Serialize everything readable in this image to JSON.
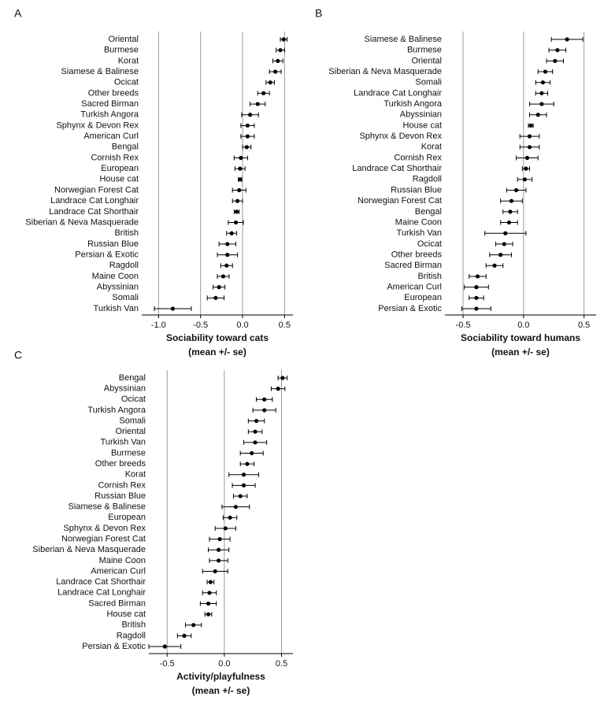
{
  "chart_data": [
    {
      "type": "dot",
      "panel_label": "A",
      "xlabel": "Sociability toward cats",
      "xlabel_sub": "(mean +/- se)",
      "categories": [
        "Oriental",
        "Burmese",
        "Korat",
        "Siamese & Balinese",
        "Ocicat",
        "Other breeds",
        "Sacred Birman",
        "Turkish Angora",
        "Sphynx & Devon Rex",
        "American Curl",
        "Bengal",
        "Cornish Rex",
        "European",
        "House cat",
        "Norwegian Forest Cat",
        "Landrace Cat Longhair",
        "Landrace Cat Shorthair",
        "Siberian & Neva Masquerade",
        "British",
        "Russian Blue",
        "Persian & Exotic",
        "Ragdoll",
        "Maine Coon",
        "Abyssinian",
        "Somali",
        "Turkish Van"
      ],
      "values": [
        0.49,
        0.45,
        0.42,
        0.39,
        0.33,
        0.25,
        0.18,
        0.09,
        0.06,
        0.06,
        0.05,
        -0.02,
        -0.03,
        -0.03,
        -0.04,
        -0.06,
        -0.07,
        -0.08,
        -0.13,
        -0.18,
        -0.18,
        -0.19,
        -0.23,
        -0.28,
        -0.32,
        -0.83
      ],
      "errors": [
        0.04,
        0.05,
        0.06,
        0.07,
        0.05,
        0.07,
        0.09,
        0.1,
        0.08,
        0.08,
        0.05,
        0.08,
        0.06,
        0.02,
        0.08,
        0.06,
        0.03,
        0.09,
        0.06,
        0.1,
        0.12,
        0.07,
        0.07,
        0.07,
        0.1,
        0.22
      ],
      "color": "#000000",
      "xlim": [
        -1.2,
        0.6
      ],
      "xticks": [
        {
          "value": -1,
          "label": "-1.0"
        },
        -0.5,
        {
          "value": 0,
          "label": "0.0"
        },
        0.5
      ],
      "grid": true
    },
    {
      "type": "dot",
      "panel_label": "B",
      "xlabel": "Sociability toward humans",
      "xlabel_sub": "(mean +/- se)",
      "categories": [
        "Siamese & Balinese",
        "Burmese",
        "Oriental",
        "Siberian & Neva Masquerade",
        "Somali",
        "Landrace Cat Longhair",
        "Turkish Angora",
        "Abyssinian",
        "House cat",
        "Sphynx & Devon Rex",
        "Korat",
        "Cornish Rex",
        "Landrace Cat Shorthair",
        "Ragdoll",
        "Russian Blue",
        "Norwegian Forest Cat",
        "Bengal",
        "Maine Coon",
        "Turkish Van",
        "Ocicat",
        "Other breeds",
        "Sacred Birman",
        "British",
        "American Curl",
        "European",
        "Persian & Exotic"
      ],
      "values": [
        0.36,
        0.28,
        0.26,
        0.18,
        0.16,
        0.15,
        0.15,
        0.12,
        0.06,
        0.05,
        0.05,
        0.03,
        0.02,
        0.01,
        -0.06,
        -0.1,
        -0.11,
        -0.12,
        -0.15,
        -0.16,
        -0.19,
        -0.24,
        -0.38,
        -0.39,
        -0.39,
        -0.39
      ],
      "errors": [
        0.13,
        0.07,
        0.07,
        0.06,
        0.06,
        0.05,
        0.1,
        0.07,
        0.02,
        0.08,
        0.08,
        0.09,
        0.03,
        0.06,
        0.08,
        0.09,
        0.06,
        0.07,
        0.17,
        0.07,
        0.09,
        0.07,
        0.07,
        0.1,
        0.06,
        0.12
      ],
      "color": "#000000",
      "xlim": [
        -0.65,
        0.6
      ],
      "xticks": [
        -0.5,
        {
          "value": 0,
          "label": "0.0"
        },
        0.5
      ],
      "grid": true
    },
    {
      "type": "dot",
      "panel_label": "C",
      "xlabel": "Activity/playfulness",
      "xlabel_sub": "(mean +/- se)",
      "categories": [
        "Bengal",
        "Abyssinian",
        "Ocicat",
        "Turkish Angora",
        "Somali",
        "Oriental",
        "Turkish Van",
        "Burmese",
        "Other breeds",
        "Korat",
        "Cornish Rex",
        "Russian Blue",
        "Siamese & Balinese",
        "European",
        "Sphynx & Devon Rex",
        "Norwegian Forest Cat",
        "Siberian & Neva Masquerade",
        "Maine Coon",
        "American Curl",
        "Landrace Cat Shorthair",
        "Landrace Cat Longhair",
        "Sacred Birman",
        "House cat",
        "British",
        "Ragdoll",
        "Persian & Exotic"
      ],
      "values": [
        0.51,
        0.47,
        0.35,
        0.35,
        0.28,
        0.27,
        0.27,
        0.24,
        0.2,
        0.17,
        0.17,
        0.14,
        0.1,
        0.05,
        0.01,
        -0.04,
        -0.05,
        -0.05,
        -0.08,
        -0.12,
        -0.13,
        -0.14,
        -0.14,
        -0.27,
        -0.35,
        -0.52
      ],
      "errors": [
        0.04,
        0.06,
        0.07,
        0.1,
        0.07,
        0.06,
        0.1,
        0.1,
        0.06,
        0.13,
        0.1,
        0.06,
        0.12,
        0.06,
        0.09,
        0.09,
        0.09,
        0.08,
        0.11,
        0.03,
        0.06,
        0.07,
        0.03,
        0.07,
        0.06,
        0.14
      ],
      "color": "#000000",
      "xlim": [
        -0.66,
        0.6
      ],
      "xticks": [
        -0.5,
        {
          "value": 0,
          "label": "0.0"
        },
        0.5
      ],
      "grid": true
    }
  ]
}
